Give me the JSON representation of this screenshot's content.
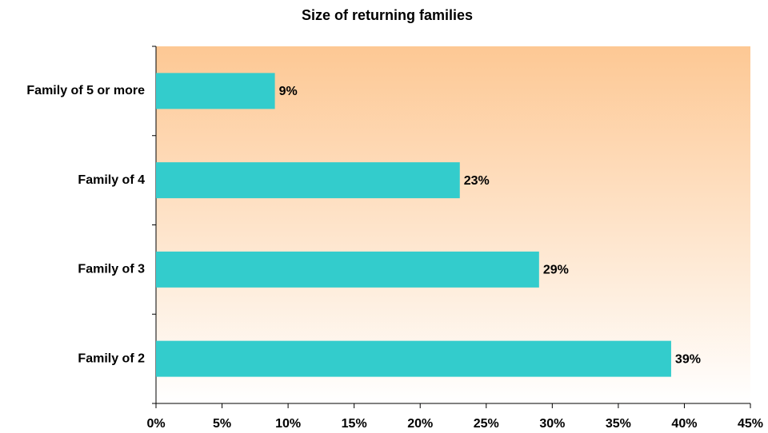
{
  "chart_data": {
    "type": "bar",
    "orientation": "horizontal",
    "title": "Size of returning families",
    "categories": [
      "Family of 5 or more",
      "Family of 4",
      "Family of 3",
      "Family of 2"
    ],
    "values": [
      9,
      23,
      29,
      39
    ],
    "value_labels": [
      "9%",
      "23%",
      "29%",
      "39%"
    ],
    "color": "#33cccc",
    "xlim": [
      0,
      45
    ],
    "xticks": [
      {
        "value": 0,
        "label": "0%"
      },
      {
        "value": 5,
        "label": "5%"
      },
      {
        "value": 10,
        "label": "10%"
      },
      {
        "value": 15,
        "label": "15%"
      },
      {
        "value": 20,
        "label": "20%"
      },
      {
        "value": 25,
        "label": "25%"
      },
      {
        "value": 30,
        "label": "30%"
      },
      {
        "value": 35,
        "label": "35%"
      },
      {
        "value": 40,
        "label": "40%"
      },
      {
        "value": 45,
        "label": "45%"
      }
    ],
    "grid": false
  }
}
